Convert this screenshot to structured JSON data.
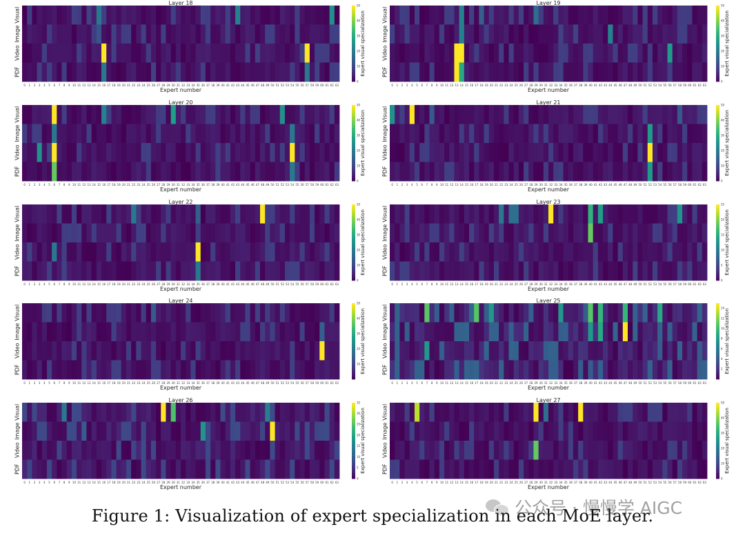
{
  "figure": {
    "caption": "Figure 1: Visualization of expert specialization in each MoE layer.",
    "watermark": "公众号 · 慢慢学 AIGC",
    "watermark_icon": "wechat-icon"
  },
  "colormap": "viridis",
  "chart_data": [
    {
      "type": "heatmap",
      "title": "Layer 18",
      "xlabel": "Expert number",
      "ylabel_rows": [
        "Visual",
        "Image",
        "Video",
        "PDF"
      ],
      "colorbar_label": "Expert visual specialization",
      "vmin": 0,
      "vmax": 50,
      "colorbar_ticks": [
        0,
        10,
        20,
        30,
        40,
        50
      ],
      "background": 6,
      "cells": [
        [
          15,
          0,
          20
        ],
        [
          43,
          0,
          22
        ],
        [
          62,
          0,
          25
        ],
        [
          15,
          1,
          13
        ],
        [
          16,
          2,
          50
        ],
        [
          57,
          2,
          50
        ],
        [
          16,
          3,
          20
        ],
        [
          57,
          3,
          20
        ]
      ]
    },
    {
      "type": "heatmap",
      "title": "Layer 19",
      "xlabel": "Expert number",
      "ylabel_rows": [
        "Visual",
        "Image",
        "Video",
        "PDF"
      ],
      "colorbar_label": "Expert visual specialization",
      "vmin": 0,
      "vmax": 50,
      "colorbar_ticks": [
        0,
        10,
        20,
        30,
        40,
        50
      ],
      "background": 6,
      "cells": [
        [
          14,
          0,
          22
        ],
        [
          18,
          0,
          15
        ],
        [
          29,
          0,
          18
        ],
        [
          14,
          1,
          22
        ],
        [
          44,
          1,
          22
        ],
        [
          13,
          2,
          50
        ],
        [
          14,
          2,
          50
        ],
        [
          56,
          2,
          27
        ],
        [
          13,
          3,
          50
        ],
        [
          14,
          3,
          30
        ]
      ]
    },
    {
      "type": "heatmap",
      "title": "Layer 20",
      "xlabel": "Expert number",
      "ylabel_rows": [
        "Visual",
        "Image",
        "Video",
        "PDF"
      ],
      "colorbar_label": "Expert visual specialization",
      "vmin": 0,
      "vmax": 50,
      "colorbar_ticks": [
        0,
        10,
        20,
        30,
        40,
        50
      ],
      "background": 6,
      "cells": [
        [
          6,
          0,
          50
        ],
        [
          16,
          0,
          22
        ],
        [
          30,
          0,
          28
        ],
        [
          52,
          0,
          25
        ],
        [
          6,
          1,
          20
        ],
        [
          54,
          1,
          20
        ],
        [
          3,
          2,
          25
        ],
        [
          6,
          2,
          50
        ],
        [
          54,
          2,
          50
        ],
        [
          6,
          3,
          38
        ],
        [
          54,
          3,
          20
        ]
      ]
    },
    {
      "type": "heatmap",
      "title": "Layer 21",
      "xlabel": "Expert number",
      "ylabel_rows": [
        "Visual",
        "Image",
        "Video",
        "PDF"
      ],
      "colorbar_label": "Expert visual specialization",
      "vmin": 0,
      "vmax": 50,
      "colorbar_ticks": [
        0,
        10,
        20,
        30,
        40,
        50
      ],
      "background": 6,
      "cells": [
        [
          0,
          0,
          25
        ],
        [
          4,
          0,
          50
        ],
        [
          8,
          0,
          14
        ],
        [
          58,
          0,
          14
        ],
        [
          52,
          1,
          27
        ],
        [
          52,
          2,
          50
        ],
        [
          52,
          3,
          27
        ]
      ]
    },
    {
      "type": "heatmap",
      "title": "Layer 22",
      "xlabel": "Expert number",
      "ylabel_rows": [
        "Visual",
        "Image",
        "Video",
        "PDF"
      ],
      "colorbar_label": "Expert visual specialization",
      "vmin": 0,
      "vmax": 50,
      "colorbar_ticks": [
        0,
        10,
        20,
        30,
        40,
        50
      ],
      "background": 6,
      "cells": [
        [
          22,
          0,
          20
        ],
        [
          35,
          0,
          15
        ],
        [
          48,
          0,
          50
        ],
        [
          6,
          2,
          20
        ],
        [
          35,
          2,
          50
        ],
        [
          35,
          3,
          20
        ]
      ]
    },
    {
      "type": "heatmap",
      "title": "Layer 23",
      "xlabel": "Expert number",
      "ylabel_rows": [
        "Visual",
        "Image",
        "Video",
        "PDF"
      ],
      "colorbar_label": "Expert visual specialization",
      "vmin": 0,
      "vmax": 25,
      "colorbar_ticks": [
        0,
        5,
        10,
        15,
        20,
        25
      ],
      "background": 3,
      "cells": [
        [
          32,
          0,
          25
        ],
        [
          40,
          0,
          16
        ],
        [
          42,
          0,
          14
        ],
        [
          58,
          0,
          13
        ],
        [
          22,
          0,
          10
        ],
        [
          24,
          0,
          9
        ],
        [
          25,
          0,
          9
        ],
        [
          40,
          1,
          19
        ]
      ]
    },
    {
      "type": "heatmap",
      "title": "Layer 24",
      "xlabel": "Expert number",
      "ylabel_rows": [
        "Visual",
        "Image",
        "Video",
        "PDF"
      ],
      "colorbar_label": "Expert visual specialization",
      "vmin": 0,
      "vmax": 50,
      "colorbar_ticks": [
        10,
        20,
        30,
        40,
        50
      ],
      "background": 6,
      "cells": [
        [
          60,
          2,
          50
        ],
        [
          60,
          1,
          15
        ],
        [
          26,
          0,
          14
        ]
      ]
    },
    {
      "type": "heatmap",
      "title": "Layer 25",
      "xlabel": "Expert number",
      "ylabel_rows": [
        "Visual",
        "Image",
        "Video",
        "PDF"
      ],
      "colorbar_label": "Expert visual specialization",
      "vmin": 0,
      "vmax": 15,
      "colorbar_ticks": [
        2,
        4,
        6,
        8,
        10,
        12,
        14
      ],
      "background": 3,
      "cells": [
        [
          7,
          0,
          11
        ],
        [
          17,
          0,
          11
        ],
        [
          20,
          0,
          8
        ],
        [
          40,
          0,
          11
        ],
        [
          42,
          0,
          10
        ],
        [
          47,
          0,
          10
        ],
        [
          54,
          0,
          9
        ],
        [
          34,
          0,
          8
        ],
        [
          47,
          1,
          15
        ],
        [
          42,
          1,
          9
        ],
        [
          40,
          1,
          8
        ],
        [
          7,
          2,
          8
        ]
      ]
    },
    {
      "type": "heatmap",
      "title": "Layer 26",
      "xlabel": "Expert number",
      "ylabel_rows": [
        "Visual",
        "Image",
        "Video",
        "PDF"
      ],
      "colorbar_label": "Expert visual specialization",
      "vmin": 0,
      "vmax": 35,
      "colorbar_ticks": [
        0,
        5,
        10,
        15,
        20,
        25,
        30,
        35
      ],
      "background": 5,
      "cells": [
        [
          28,
          0,
          35
        ],
        [
          30,
          0,
          25
        ],
        [
          8,
          0,
          14
        ],
        [
          49,
          0,
          15
        ],
        [
          50,
          1,
          35
        ],
        [
          36,
          1,
          18
        ],
        [
          12,
          1,
          10
        ]
      ]
    },
    {
      "type": "heatmap",
      "title": "Layer 27",
      "xlabel": "Expert number",
      "ylabel_rows": [
        "Visual",
        "Image",
        "Video",
        "PDF"
      ],
      "colorbar_label": "Expert visual specialization",
      "vmin": 0,
      "vmax": 50,
      "colorbar_ticks": [
        0,
        10,
        20,
        30,
        40,
        50
      ],
      "background": 6,
      "cells": [
        [
          5,
          0,
          45
        ],
        [
          29,
          0,
          50
        ],
        [
          31,
          0,
          18
        ],
        [
          38,
          0,
          50
        ],
        [
          29,
          2,
          38
        ]
      ]
    }
  ]
}
